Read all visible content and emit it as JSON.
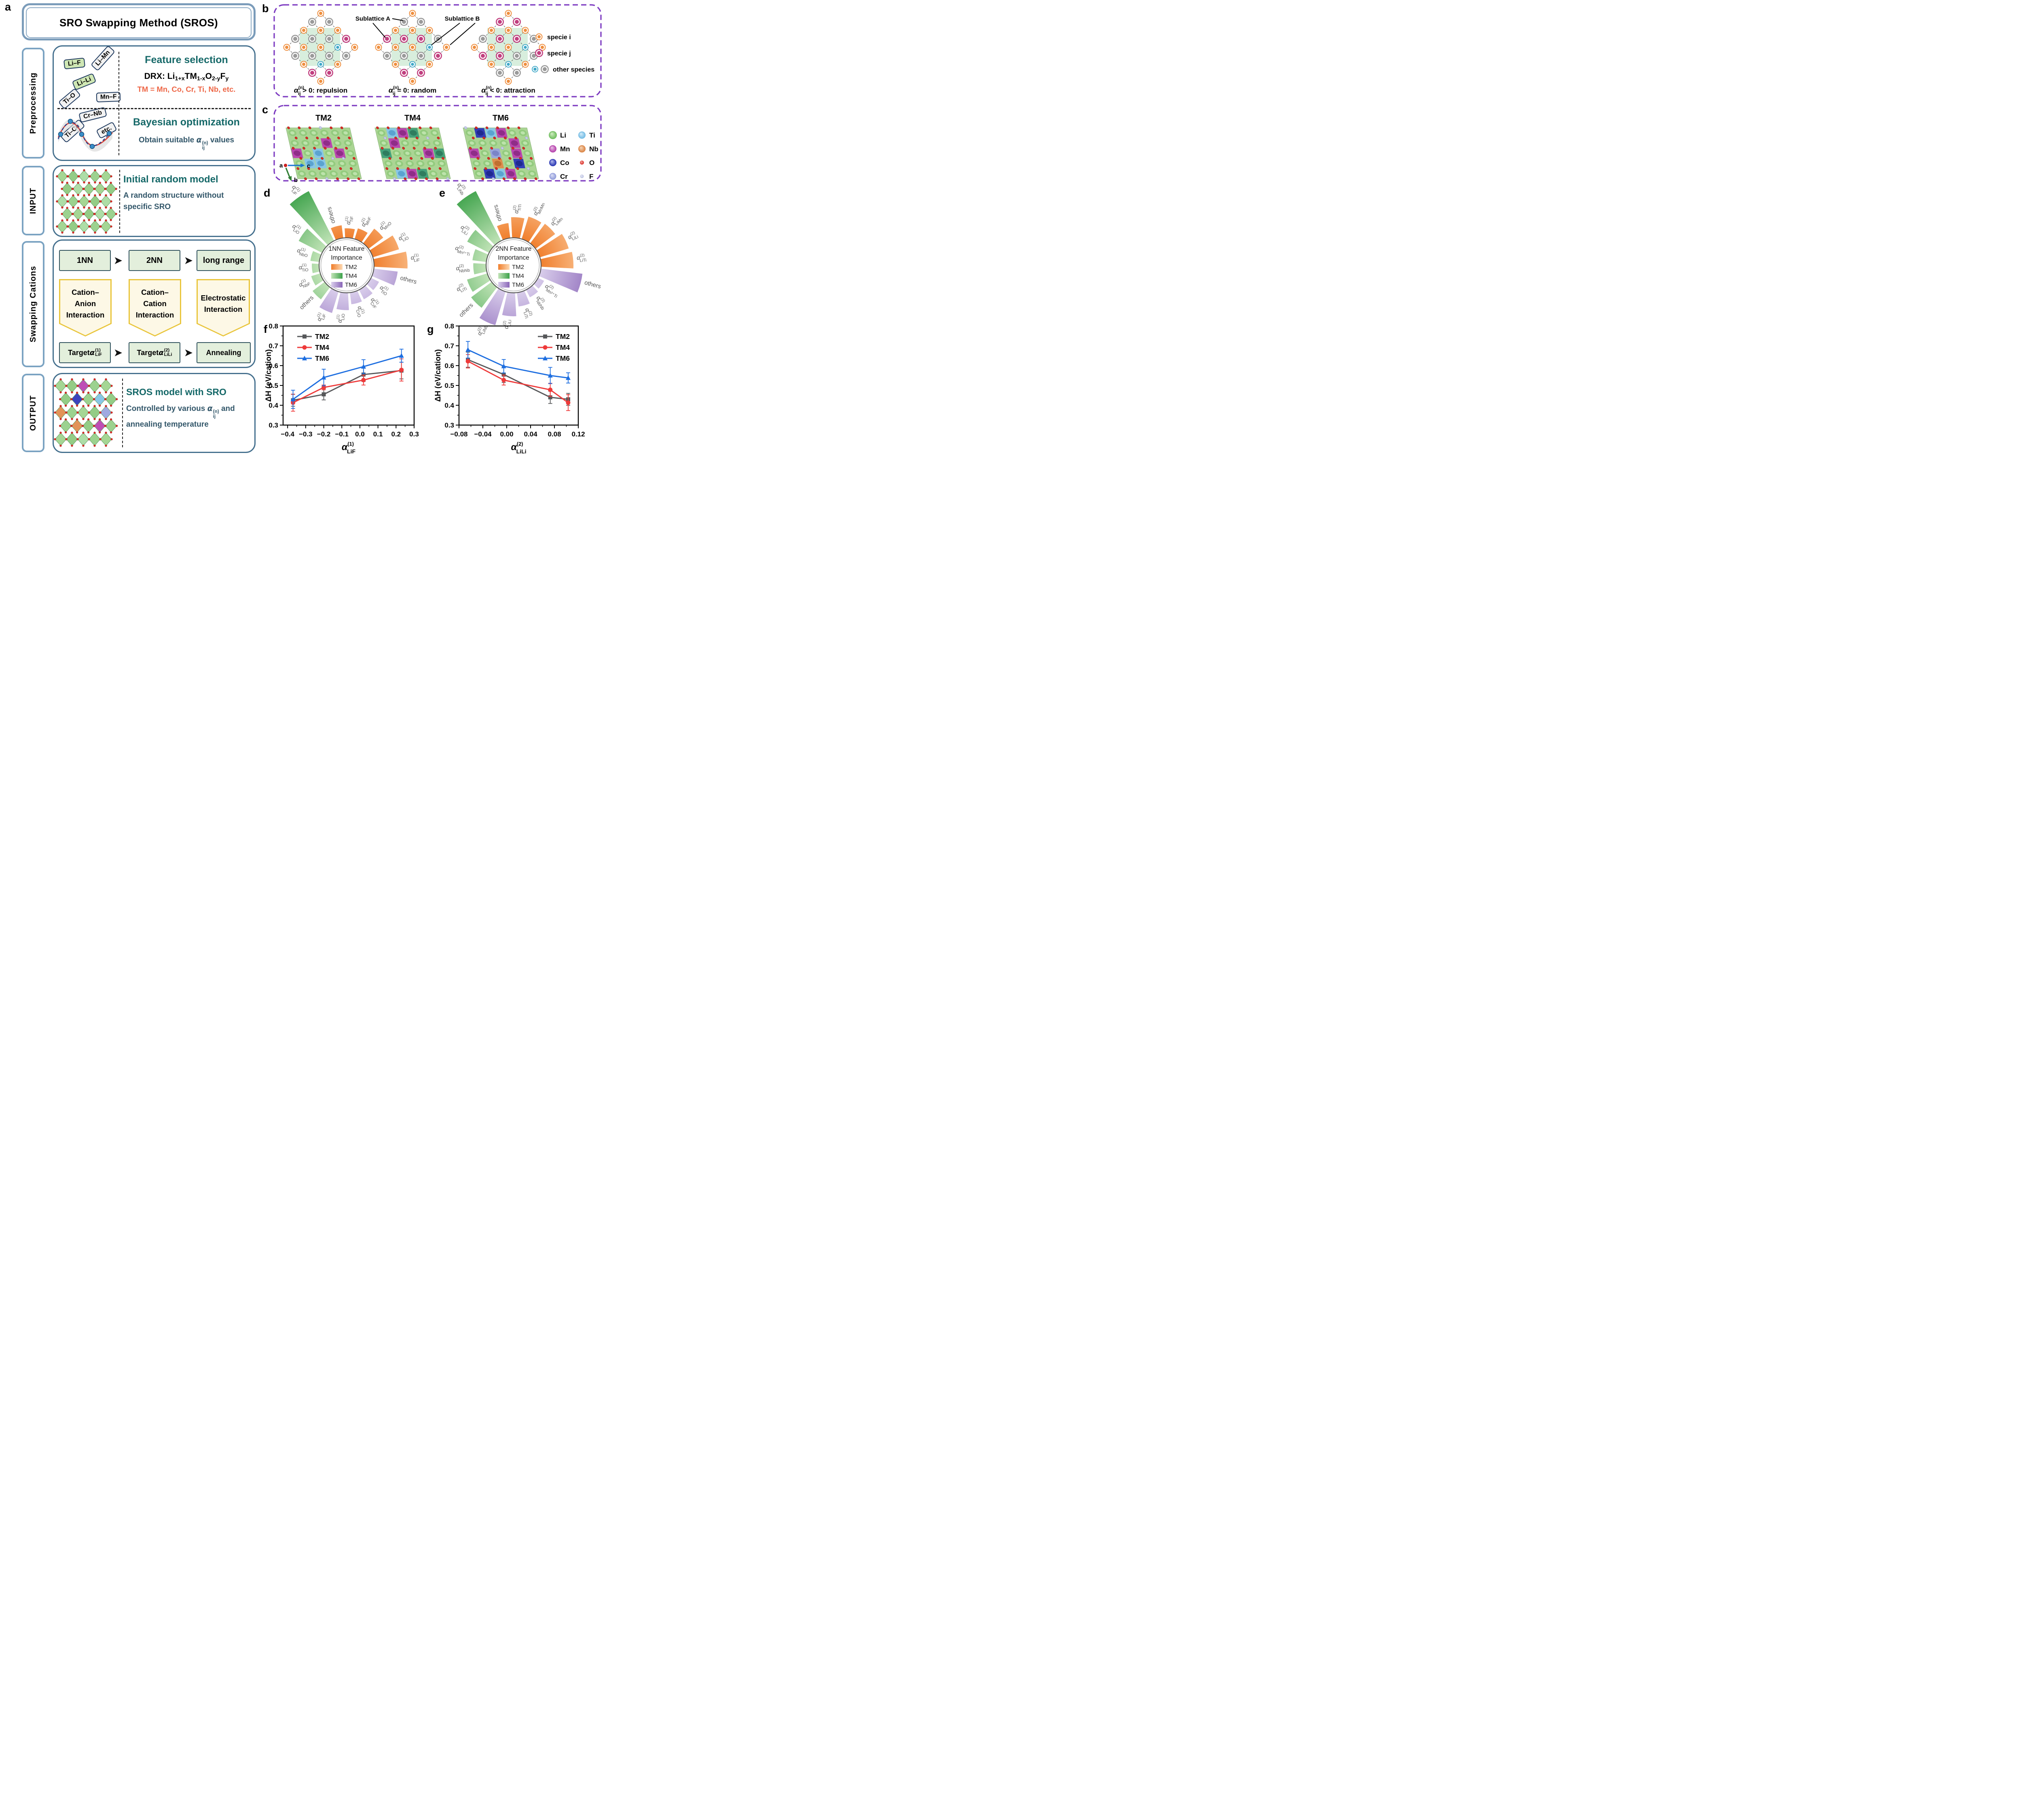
{
  "panel_labels": {
    "a": "a",
    "b": "b",
    "c": "c",
    "d": "d",
    "e": "e",
    "f": "f",
    "g": "g"
  },
  "colors": {
    "box_border": "#45708e",
    "side_border": "#7ba3c2",
    "teal": "#156868",
    "orange_text": "#ee6747",
    "purple_dash": "#7d3bc1",
    "tm2": "#f58238",
    "tm4": "#4aac52",
    "tm6": "#8a66b8",
    "line_tm2": "#57585a",
    "line_tm4": "#ee3a3a",
    "line_tm6": "#1d6ee0"
  },
  "panel_a": {
    "title": "SRO Swapping Method (SROS)",
    "preprocessing": {
      "side_label": "Preprocessing",
      "tags": [
        {
          "label": "Li–F",
          "green": true
        },
        {
          "label": "Li–Mn",
          "green": false
        },
        {
          "label": "Li–Li",
          "green": true
        },
        {
          "label": "Ti–O",
          "green": false
        },
        {
          "label": "Mn–F",
          "green": false
        },
        {
          "label": "Cr–Nb",
          "green": false
        },
        {
          "label": "Ti–Co",
          "green": false
        },
        {
          "label": "etc.",
          "green": false
        }
      ],
      "feature_title": "Feature selection",
      "drx": [
        {
          "t": "DRX: Li"
        },
        {
          "sub": "1+x"
        },
        {
          "t": "TM"
        },
        {
          "sub": "1-x"
        },
        {
          "t": "O"
        },
        {
          "sub": "2-y"
        },
        {
          "t": "F"
        },
        {
          "sub": "y"
        }
      ],
      "tm_line": "TM = Mn, Co, Cr, Ti, Nb, etc.",
      "bayes_title": "Bayesian optimization",
      "bayes_sub": [
        {
          "t": "Obtain suitable "
        },
        {
          "i": "α"
        },
        {
          "stack": {
            "sup": "(n)",
            "sub": "ij"
          }
        },
        {
          "t": " values"
        }
      ]
    },
    "input": {
      "side_label": "INPUT",
      "title": "Initial random model",
      "desc": "A random structure without specific SRO"
    },
    "swapping": {
      "side_label": "Swapping Cations",
      "row1": [
        "1NN",
        "2NN",
        "long range"
      ],
      "arrow": "➤",
      "banners": [
        [
          "Cation–",
          "Anion",
          "Interaction"
        ],
        [
          "Cation–",
          "Cation",
          "Interaction"
        ],
        [
          "Electrostatic",
          "Interaction"
        ]
      ],
      "target1": [
        {
          "t": "Target "
        },
        {
          "i": "α"
        },
        {
          "stack": {
            "sup": "(1)",
            "sub": "LiF"
          }
        }
      ],
      "target2": [
        {
          "t": "Target "
        },
        {
          "i": "α"
        },
        {
          "stack": {
            "sup": "(2)",
            "sub": "LiLi"
          }
        }
      ],
      "annealing": "Annealing"
    },
    "output": {
      "side_label": "OUTPUT",
      "title": "SROS model with SRO",
      "desc": [
        {
          "t": "Controlled by various "
        },
        {
          "i": "α"
        },
        {
          "stack": {
            "sup": "(n)",
            "sub": "ij"
          }
        },
        {
          "t": " and annealing temperature"
        }
      ]
    }
  },
  "panel_b": {
    "sublattice_a": "Sublattice A",
    "sublattice_b": "Sublattice B",
    "legend": [
      {
        "label": "specie i",
        "colors": [
          "#ef8f3f"
        ]
      },
      {
        "label": "specie j",
        "colors": [
          "#c13f7f"
        ]
      },
      {
        "label": "other species",
        "colors": [
          "#3fa8c8",
          "#9a9a9a"
        ]
      }
    ],
    "lattices": [
      {
        "caption": " > 0: repulsion",
        "rows": [
          "i",
          "gg",
          "iii",
          "gggj",
          "iiioi",
          "gggg",
          "ioi",
          "jj",
          "i"
        ]
      },
      {
        "caption": " = 0: random",
        "rows": [
          "i",
          "gg",
          "iii",
          "jjjg",
          "iiioi",
          "gggj",
          "ioi",
          "jj",
          "i"
        ]
      },
      {
        "caption": " < 0: attraction",
        "rows": [
          "i",
          "jj",
          "iii",
          "gjjg",
          "iiioi",
          "jjgg",
          "ioi",
          "gg",
          "i"
        ]
      }
    ]
  },
  "panel_c": {
    "titles": [
      "TM2",
      "TM4",
      "TM6"
    ],
    "axis": {
      "a": "a",
      "b": "b",
      "c": "c"
    },
    "legend": [
      {
        "el": "Li"
      },
      {
        "el": "Ti"
      },
      {
        "el": "Mn"
      },
      {
        "el": "Nb"
      },
      {
        "el": "Co"
      },
      {
        "el": "O"
      },
      {
        "el": "Cr"
      },
      {
        "el": "F"
      }
    ],
    "slabs": [
      {
        "cells": [
          {
            "r": 1,
            "c": 3,
            "el": "Mn"
          },
          {
            "r": 2,
            "c": 0,
            "el": "Mn"
          },
          {
            "r": 2,
            "c": 4,
            "el": "Mn"
          },
          {
            "r": 2,
            "c": 2,
            "el": "Ti"
          },
          {
            "r": 3,
            "c": 1,
            "el": "Ti"
          },
          {
            "r": 3,
            "c": 2,
            "el": "Ti"
          }
        ],
        "fdots": [
          {
            "r": 0,
            "c": 3
          },
          {
            "r": 3,
            "c": 3
          },
          {
            "r": 3,
            "c": 4
          },
          {
            "r": 5,
            "c": 2
          }
        ]
      },
      {
        "cells": [
          {
            "r": 0,
            "c": 1,
            "el": "Ti"
          },
          {
            "r": 0,
            "c": 2,
            "el": "Mn"
          },
          {
            "r": 0,
            "c": 3,
            "el": "G2"
          },
          {
            "r": 1,
            "c": 1,
            "el": "Mn"
          },
          {
            "r": 2,
            "c": 0,
            "el": "G2"
          },
          {
            "r": 2,
            "c": 4,
            "el": "Mn"
          },
          {
            "r": 2,
            "c": 5,
            "el": "G2"
          },
          {
            "r": 4,
            "c": 1,
            "el": "Ti"
          },
          {
            "r": 4,
            "c": 2,
            "el": "Mn"
          },
          {
            "r": 4,
            "c": 3,
            "el": "G2"
          }
        ],
        "fdots": [
          {
            "r": 1,
            "c": 0
          },
          {
            "r": 1,
            "c": 4
          },
          {
            "r": 5,
            "c": 0
          },
          {
            "r": 5,
            "c": 5
          }
        ]
      },
      {
        "cells": [
          {
            "r": 0,
            "c": 1,
            "el": "Co"
          },
          {
            "r": 0,
            "c": 2,
            "el": "Ti"
          },
          {
            "r": 0,
            "c": 3,
            "el": "Mn"
          },
          {
            "r": 1,
            "c": 4,
            "el": "Mn"
          },
          {
            "r": 2,
            "c": 0,
            "el": "Mn"
          },
          {
            "r": 2,
            "c": 2,
            "el": "Cr"
          },
          {
            "r": 2,
            "c": 4,
            "el": "Mn"
          },
          {
            "r": 3,
            "c": 2,
            "el": "Nb"
          },
          {
            "r": 3,
            "c": 4,
            "el": "Co"
          },
          {
            "r": 4,
            "c": 1,
            "el": "Co"
          },
          {
            "r": 4,
            "c": 2,
            "el": "Ti"
          },
          {
            "r": 4,
            "c": 3,
            "el": "Mn"
          }
        ],
        "fdots": [
          {
            "r": 0,
            "c": 0
          },
          {
            "r": 1,
            "c": 5
          },
          {
            "r": 2,
            "c": 3
          },
          {
            "r": 4,
            "c": 5
          },
          {
            "r": 5,
            "c": 1
          }
        ]
      }
    ]
  },
  "chart_data": [
    {
      "id": "svg-d",
      "type": "rose",
      "title_lines": [
        "1NN Feature",
        "Importance"
      ],
      "legend": [
        "TM2",
        "TM4",
        "TM6"
      ],
      "bars": [
        {
          "group": "TM2",
          "label": "others",
          "value": 0.23
        },
        {
          "group": "TM2",
          "sup": "(1)",
          "sub": "TiF",
          "value": 0.17
        },
        {
          "group": "TM2",
          "sup": "(1)",
          "sub": "MnF",
          "value": 0.2
        },
        {
          "group": "TM2",
          "sup": "(1)",
          "sub": "MnO",
          "value": 0.33
        },
        {
          "group": "TM2",
          "sup": "(1)",
          "sub": "LiO",
          "value": 0.49
        },
        {
          "group": "TM2",
          "sup": "(1)",
          "sub": "LiF",
          "value": 0.6
        },
        {
          "group": "TM6",
          "label": "others",
          "value": 0.43
        },
        {
          "group": "TM6",
          "sup": "(1)",
          "sub": "TiO",
          "value": 0.16
        },
        {
          "group": "TM6",
          "sup": "(1)",
          "sub": "CrF",
          "value": 0.19
        },
        {
          "group": "TM6",
          "sup": "(1)",
          "sub": "CrO",
          "value": 0.21
        },
        {
          "group": "TM6",
          "sup": "(1)",
          "sub": "LiO",
          "value": 0.31
        },
        {
          "group": "TM6",
          "sup": "(1)",
          "sub": "LiF",
          "value": 0.4
        },
        {
          "group": "TM4",
          "label": "others",
          "value": 0.27
        },
        {
          "group": "TM4",
          "sup": "(1)",
          "sub": "NbF",
          "value": 0.17
        },
        {
          "group": "TM4",
          "sup": "(1)",
          "sub": "TiO",
          "value": 0.13
        },
        {
          "group": "TM4",
          "sup": "(1)",
          "sub": "NbO",
          "value": 0.16
        },
        {
          "group": "TM4",
          "sup": "(1)",
          "sub": "LiO",
          "value": 0.47
        },
        {
          "group": "TM4",
          "sup": "(1)",
          "sub": "LiF",
          "value": 1.0
        }
      ]
    },
    {
      "id": "svg-e",
      "type": "rose",
      "title_lines": [
        "2NN Feature",
        "Importance"
      ],
      "legend": [
        "TM2",
        "TM4",
        "TM6"
      ],
      "bars": [
        {
          "group": "TM2",
          "label": "others",
          "value": 0.27
        },
        {
          "group": "TM2",
          "sup": "(2)",
          "sub": "TiTi",
          "value": 0.37
        },
        {
          "group": "TM2",
          "sup": "(2)",
          "sub": "MnMn",
          "value": 0.42
        },
        {
          "group": "TM2",
          "sup": "(2)",
          "sub": "LiMn",
          "value": 0.44
        },
        {
          "group": "TM2",
          "sup": "(2)",
          "sub": "LiLi",
          "value": 0.54
        },
        {
          "group": "TM2",
          "sup": "(2)",
          "sub": "LiTi",
          "value": 0.58
        },
        {
          "group": "TM6",
          "label": "others",
          "value": 0.75
        },
        {
          "group": "TM6",
          "sup": "(2)",
          "sub": "Mn²⁺Ti",
          "value": 0.12
        },
        {
          "group": "TM6",
          "sup": "(2)",
          "sub": "NbNb",
          "value": 0.15
        },
        {
          "group": "TM6",
          "sup": "(2)",
          "sub": "LiTi",
          "value": 0.25
        },
        {
          "group": "TM6",
          "sup": "(2)",
          "sub": "LiLi",
          "value": 0.42
        },
        {
          "group": "TM6",
          "sup": "(2)",
          "sub": "LiNb",
          "value": 0.63
        },
        {
          "group": "TM4",
          "label": "others",
          "value": 0.46
        },
        {
          "group": "TM4",
          "sup": "(2)",
          "sub": "LiTi",
          "value": 0.38
        },
        {
          "group": "TM4",
          "sup": "(2)",
          "sub": "NbNb",
          "value": 0.23
        },
        {
          "group": "TM4",
          "sup": "(2)",
          "sub": "Mn²⁺Ti",
          "value": 0.25
        },
        {
          "group": "TM4",
          "sup": "(2)",
          "sub": "LiLi",
          "value": 0.44
        },
        {
          "group": "TM4",
          "sup": "(2)",
          "sub": "LiNb",
          "value": 1.0
        }
      ]
    },
    {
      "id": "svg-f",
      "type": "line",
      "ylabel": "ΔH (eV/cation)",
      "xlabel": {
        "pre": "α",
        "sup": "(1)",
        "sub": "LiF"
      },
      "xlim": [
        -0.425,
        0.3
      ],
      "ylim": [
        0.3,
        0.8
      ],
      "xticks": [
        -0.4,
        -0.3,
        -0.2,
        -0.1,
        0.0,
        0.1,
        0.2,
        0.3
      ],
      "xtick_decimals": 1,
      "yticks": [
        0.3,
        0.4,
        0.5,
        0.6,
        0.7,
        0.8
      ],
      "legend_pos": "top-left",
      "series": [
        {
          "name": "TM2",
          "color": "#57585a",
          "marker": "square",
          "x": [
            -0.37,
            -0.2,
            0.02,
            0.23
          ],
          "y": [
            0.425,
            0.455,
            0.555,
            0.575
          ],
          "err": [
            0.03,
            0.028,
            0.035,
            0.042
          ]
        },
        {
          "name": "TM4",
          "color": "#ee3a3a",
          "marker": "circle",
          "x": [
            -0.37,
            -0.2,
            0.02,
            0.23
          ],
          "y": [
            0.413,
            0.49,
            0.527,
            0.578
          ],
          "err": [
            0.043,
            0.012,
            0.025,
            0.056
          ]
        },
        {
          "name": "TM6",
          "color": "#1d6ee0",
          "marker": "triangle",
          "x": [
            -0.37,
            -0.2,
            0.02,
            0.23
          ],
          "y": [
            0.43,
            0.54,
            0.595,
            0.65
          ],
          "err": [
            0.046,
            0.042,
            0.035,
            0.033
          ]
        }
      ]
    },
    {
      "id": "svg-g",
      "type": "line",
      "ylabel": "ΔH (eV/cation)",
      "xlabel": {
        "pre": "α",
        "sup": "(2)",
        "sub": "LiLi"
      },
      "xlim": [
        -0.08,
        0.12
      ],
      "ylim": [
        0.3,
        0.8
      ],
      "xticks": [
        -0.08,
        -0.04,
        0.0,
        0.04,
        0.08,
        0.12
      ],
      "xtick_decimals": 2,
      "yticks": [
        0.3,
        0.4,
        0.5,
        0.6,
        0.7,
        0.8
      ],
      "legend_pos": "top-right",
      "series": [
        {
          "name": "TM2",
          "color": "#57585a",
          "marker": "square",
          "x": [
            -0.065,
            -0.005,
            0.073,
            0.103
          ],
          "y": [
            0.63,
            0.555,
            0.44,
            0.43
          ],
          "err": [
            0.038,
            0.04,
            0.031,
            0.03
          ]
        },
        {
          "name": "TM4",
          "color": "#ee3a3a",
          "marker": "circle",
          "x": [
            -0.065,
            -0.005,
            0.073,
            0.103
          ],
          "y": [
            0.622,
            0.527,
            0.478,
            0.413
          ],
          "err": [
            0.034,
            0.025,
            0.033,
            0.04
          ]
        },
        {
          "name": "TM6",
          "color": "#1d6ee0",
          "marker": "triangle",
          "x": [
            -0.065,
            -0.005,
            0.073,
            0.103
          ],
          "y": [
            0.68,
            0.597,
            0.55,
            0.538
          ],
          "err": [
            0.042,
            0.034,
            0.041,
            0.026
          ]
        }
      ]
    }
  ]
}
